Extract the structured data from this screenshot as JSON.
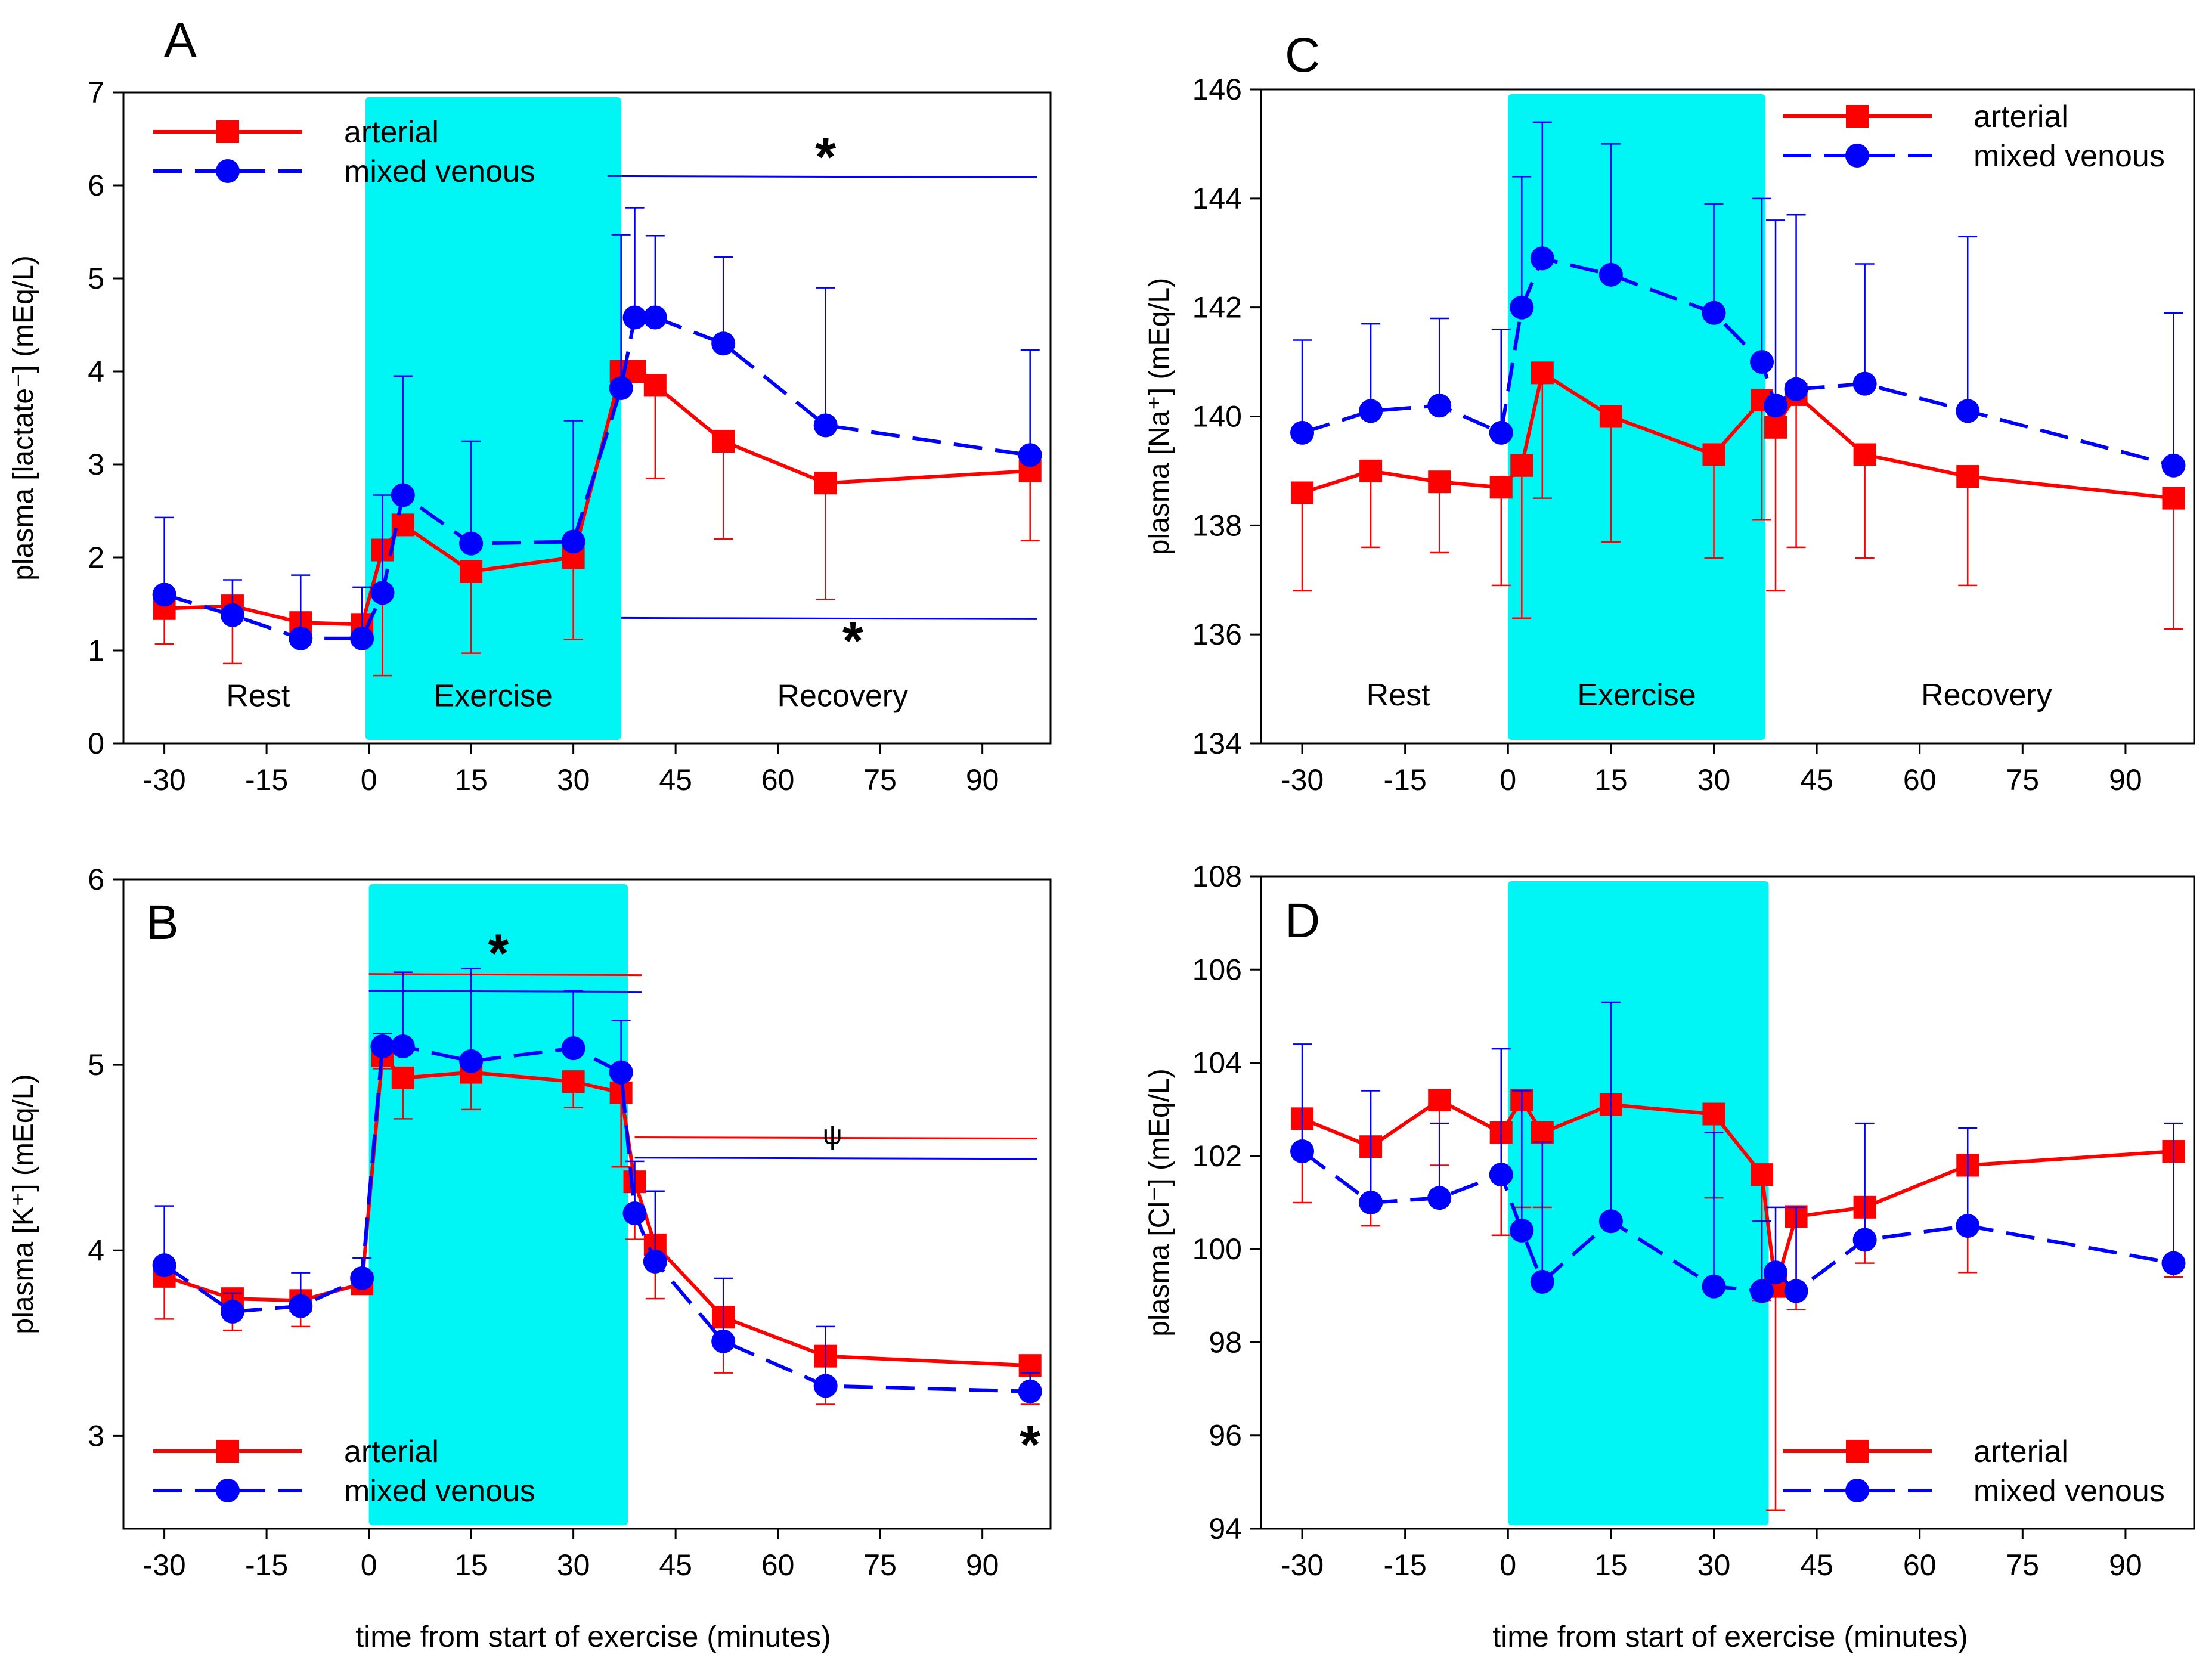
{
  "figure": {
    "xlabel": "time from start of exercise (minutes)",
    "region_labels": [
      "Rest",
      "Exercise",
      "Recovery"
    ],
    "exercise_color": "#00f5f5",
    "arterial_color": "#ff0000",
    "venous_color": "#0000ff",
    "legend": {
      "arterial": "arterial",
      "venous": "mixed venous"
    }
  },
  "chart_data": [
    {
      "id": "A",
      "letter": "A",
      "type": "line",
      "ylabel": "plasma [lactate⁻] (mEq/L)",
      "xlim": [
        -36,
        100
      ],
      "ylim": [
        0,
        7
      ],
      "xticks": [
        -30,
        -15,
        0,
        15,
        30,
        45,
        60,
        75,
        90
      ],
      "yticks": [
        0,
        1,
        2,
        3,
        4,
        5,
        6,
        7
      ],
      "exercise": [
        -0.5,
        37
      ],
      "show_regions": true,
      "region_y": 0.4,
      "legend_pos": "top-left",
      "series": [
        {
          "name": "arterial",
          "marker": "square",
          "dash": false,
          "x": [
            -30,
            -20,
            -10,
            -1,
            2,
            5,
            15,
            30,
            37,
            39,
            42,
            52,
            67,
            97
          ],
          "y": [
            1.45,
            1.48,
            1.3,
            1.28,
            2.08,
            2.35,
            1.85,
            2.0,
            4.0,
            4.0,
            3.85,
            3.25,
            2.8,
            2.93
          ],
          "err": [
            0.38,
            0.62,
            0,
            0,
            1.35,
            0,
            0.88,
            0.88,
            0,
            0,
            1.0,
            1.05,
            1.25,
            0.75
          ]
        },
        {
          "name": "mixed venous",
          "marker": "circle",
          "dash": true,
          "x": [
            -30,
            -20,
            -10,
            -1,
            2,
            5,
            15,
            30,
            37,
            39,
            42,
            52,
            67,
            97
          ],
          "y": [
            1.6,
            1.38,
            1.13,
            1.13,
            1.62,
            2.67,
            2.15,
            2.17,
            3.82,
            4.58,
            4.58,
            4.3,
            3.42,
            3.1
          ],
          "err": [
            0.83,
            0.38,
            0.68,
            0.55,
            1.05,
            1.28,
            1.1,
            1.3,
            1.65,
            1.18,
            0.88,
            0.93,
            1.48,
            1.13
          ]
        }
      ],
      "sig_lines": [
        {
          "color": "venous",
          "x0": 35,
          "x1": 98,
          "y": 6.1,
          "mark": "*",
          "mark_x": 67,
          "mark_y": 6.3
        },
        {
          "color": "venous",
          "x0": 37,
          "x1": 98,
          "y": 1.35,
          "mark": "*",
          "mark_x": 71,
          "mark_y": 1.1
        }
      ]
    },
    {
      "id": "B",
      "letter": "B",
      "type": "line",
      "ylabel": "plasma [K⁺] (mEq/L)",
      "xlim": [
        -36,
        100
      ],
      "ylim": [
        2.5,
        6
      ],
      "xticks": [
        -30,
        -15,
        0,
        15,
        30,
        45,
        60,
        75,
        90
      ],
      "yticks": [
        3,
        4,
        5,
        6
      ],
      "exercise": [
        0,
        38
      ],
      "show_regions": false,
      "legend_pos": "bottom-left",
      "series": [
        {
          "name": "arterial",
          "marker": "square",
          "dash": false,
          "x": [
            -30,
            -20,
            -10,
            -1,
            2,
            5,
            15,
            30,
            37,
            39,
            42,
            52,
            67,
            97
          ],
          "y": [
            3.86,
            3.74,
            3.73,
            3.82,
            5.05,
            4.93,
            4.96,
            4.91,
            4.85,
            4.37,
            4.03,
            3.64,
            3.43,
            3.38
          ],
          "err": [
            0.23,
            0.17,
            0.14,
            0.04,
            0.07,
            0.22,
            0.2,
            0.14,
            0.4,
            0.31,
            0.29,
            0.3,
            0.26,
            0.21
          ]
        },
        {
          "name": "mixed venous",
          "marker": "circle",
          "dash": true,
          "x": [
            -30,
            -20,
            -10,
            -1,
            2,
            5,
            15,
            30,
            37,
            39,
            42,
            52,
            67,
            97
          ],
          "y": [
            3.92,
            3.67,
            3.7,
            3.85,
            5.1,
            5.1,
            5.02,
            5.09,
            4.96,
            4.2,
            3.94,
            3.51,
            3.27,
            3.24
          ],
          "err": [
            0.32,
            0.1,
            0.18,
            0.11,
            0.07,
            0.4,
            0.5,
            0.31,
            0.28,
            0.28,
            0.38,
            0.34,
            0.32,
            0.1
          ]
        }
      ],
      "sig_lines": [
        {
          "color": "arterial",
          "x0": 0,
          "x1": 40,
          "y": 5.49,
          "mark": "*",
          "mark_x": 19,
          "mark_y": 5.6
        },
        {
          "color": "venous",
          "x0": 0,
          "x1": 40,
          "y": 5.4,
          "mark": "",
          "mark_x": 0,
          "mark_y": 0
        },
        {
          "color": "arterial",
          "x0": 39,
          "x1": 98,
          "y": 4.61,
          "mark": "ψ",
          "mark_x": 68,
          "mark_y": 4.67
        },
        {
          "color": "venous",
          "x0": 39,
          "x1": 98,
          "y": 4.5,
          "mark": "",
          "mark_x": 0,
          "mark_y": 0
        }
      ],
      "extra_marks": [
        {
          "mark": "*",
          "x": 97,
          "y": 2.95
        }
      ]
    },
    {
      "id": "C",
      "letter": "C",
      "type": "line",
      "ylabel": "plasma [Na⁺] (mEq/L)",
      "xlim": [
        -36,
        100
      ],
      "ylim": [
        134,
        146
      ],
      "xticks": [
        -30,
        -15,
        0,
        15,
        30,
        45,
        60,
        75,
        90
      ],
      "yticks": [
        134,
        136,
        138,
        140,
        142,
        144,
        146
      ],
      "exercise": [
        0,
        37.5
      ],
      "show_regions": true,
      "region_y": 134.7,
      "legend_pos": "top-right",
      "series": [
        {
          "name": "arterial",
          "marker": "square",
          "dash": false,
          "x": [
            -30,
            -20,
            -10,
            -1,
            2,
            5,
            15,
            30,
            37,
            39,
            42,
            52,
            67,
            97
          ],
          "y": [
            138.6,
            139.0,
            138.8,
            138.7,
            139.1,
            140.8,
            140.0,
            139.3,
            140.3,
            139.8,
            140.4,
            139.3,
            138.9,
            138.5
          ],
          "err": [
            1.8,
            1.4,
            1.3,
            1.8,
            2.8,
            2.3,
            2.3,
            1.9,
            2.2,
            3.0,
            2.8,
            1.9,
            2.0,
            2.4
          ]
        },
        {
          "name": "mixed venous",
          "marker": "circle",
          "dash": true,
          "x": [
            -30,
            -20,
            -10,
            -1,
            2,
            5,
            15,
            30,
            37,
            39,
            42,
            52,
            67,
            97
          ],
          "y": [
            139.7,
            140.1,
            140.2,
            139.7,
            142.0,
            142.9,
            142.6,
            141.9,
            141.0,
            140.2,
            140.5,
            140.6,
            140.1,
            139.1
          ],
          "err": [
            1.7,
            1.6,
            1.6,
            1.9,
            2.4,
            2.5,
            2.4,
            2.0,
            3.0,
            3.4,
            3.2,
            2.2,
            3.2,
            2.8
          ]
        }
      ],
      "sig_lines": []
    },
    {
      "id": "D",
      "letter": "D",
      "type": "line",
      "ylabel": "plasma [Cl⁻] (mEq/L)",
      "xlim": [
        -36,
        100
      ],
      "ylim": [
        94,
        108
      ],
      "xticks": [
        -30,
        -15,
        0,
        15,
        30,
        45,
        60,
        75,
        90
      ],
      "yticks": [
        94,
        96,
        98,
        100,
        102,
        104,
        106,
        108
      ],
      "exercise": [
        0,
        38
      ],
      "show_regions": false,
      "legend_pos": "bottom-right",
      "series": [
        {
          "name": "arterial",
          "marker": "square",
          "dash": false,
          "x": [
            -30,
            -20,
            -10,
            -1,
            2,
            5,
            15,
            30,
            37,
            39,
            42,
            52,
            67,
            97
          ],
          "y": [
            102.8,
            102.2,
            103.2,
            102.5,
            103.2,
            102.5,
            103.1,
            102.9,
            101.6,
            99.2,
            100.7,
            100.9,
            101.8,
            102.1
          ],
          "err": [
            1.8,
            1.7,
            1.4,
            2.2,
            2.3,
            1.6,
            2.6,
            1.8,
            2.7,
            4.8,
            2.0,
            1.2,
            2.3,
            2.7
          ]
        },
        {
          "name": "mixed venous",
          "marker": "circle",
          "dash": true,
          "x": [
            -30,
            -20,
            -10,
            -1,
            2,
            5,
            15,
            30,
            37,
            39,
            42,
            52,
            67,
            97
          ],
          "y": [
            102.1,
            101.0,
            101.1,
            101.6,
            100.4,
            99.3,
            100.6,
            99.2,
            99.1,
            99.5,
            99.1,
            100.2,
            100.5,
            99.7
          ],
          "err": [
            2.3,
            2.4,
            1.6,
            2.7,
            3.0,
            3.0,
            4.7,
            3.3,
            1.5,
            1.4,
            1.8,
            2.5,
            2.1,
            3.0
          ]
        }
      ],
      "sig_lines": []
    }
  ]
}
